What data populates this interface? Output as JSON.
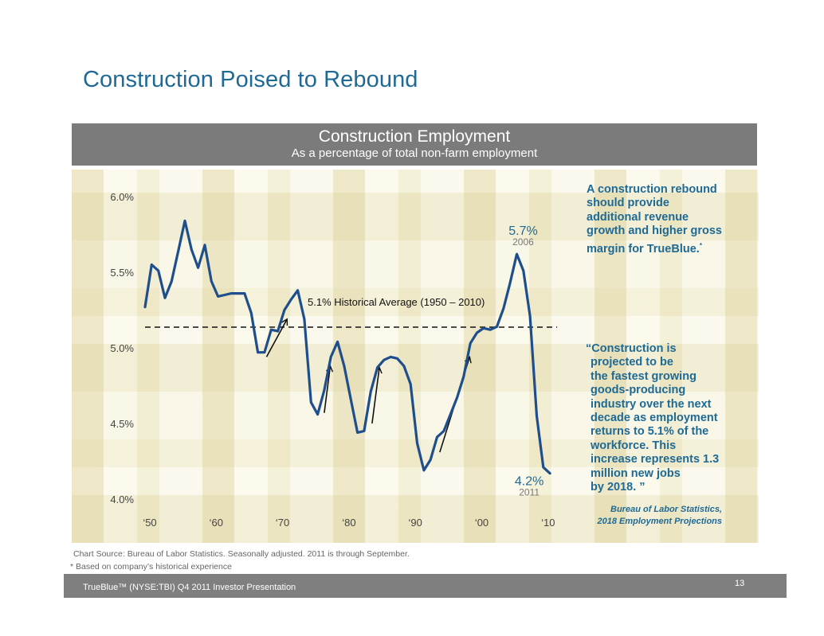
{
  "page": {
    "title": "Construction Poised to Rebound"
  },
  "header": {
    "title": "Construction Employment",
    "subtitle": "As a percentage of total non-farm employment"
  },
  "chart_data": {
    "type": "line",
    "title": "Construction Employment",
    "subtitle": "As a percentage of total non-farm employment",
    "xlabel": "",
    "ylabel": "",
    "ylim": [
      4.0,
      6.0
    ],
    "xlim": [
      1950,
      2011
    ],
    "grid": false,
    "y_ticks": [
      {
        "value": 6.0,
        "label": "6.0%"
      },
      {
        "value": 5.5,
        "label": "5.5%"
      },
      {
        "value": 5.0,
        "label": "5.0%"
      },
      {
        "value": 4.5,
        "label": "4.5%"
      },
      {
        "value": 4.0,
        "label": "4.0%"
      }
    ],
    "x_ticks": [
      {
        "value": 1950,
        "label": "‘50"
      },
      {
        "value": 1960,
        "label": "‘60"
      },
      {
        "value": 1970,
        "label": "‘70"
      },
      {
        "value": 1980,
        "label": "‘80"
      },
      {
        "value": 1990,
        "label": "‘90"
      },
      {
        "value": 2000,
        "label": "‘00"
      },
      {
        "value": 2010,
        "label": "‘10"
      }
    ],
    "series": [
      {
        "name": "Construction employment (% of non-farm)",
        "color": "#1f4e8c",
        "x": [
          1950,
          1951,
          1952,
          1953,
          1954,
          1955,
          1956,
          1957,
          1958,
          1959,
          1960,
          1961,
          1962,
          1963,
          1964,
          1965,
          1966,
          1967,
          1968,
          1969,
          1970,
          1971,
          1972,
          1973,
          1974,
          1975,
          1976,
          1977,
          1978,
          1979,
          1980,
          1981,
          1982,
          1983,
          1984,
          1985,
          1986,
          1987,
          1988,
          1989,
          1990,
          1991,
          1992,
          1993,
          1994,
          1995,
          1996,
          1997,
          1998,
          1999,
          2000,
          2001,
          2002,
          2003,
          2004,
          2005,
          2006,
          2007,
          2008,
          2009,
          2010,
          2011
        ],
        "values": [
          5.27,
          5.55,
          5.51,
          5.33,
          5.44,
          5.64,
          5.84,
          5.65,
          5.53,
          5.68,
          5.44,
          5.34,
          5.35,
          5.36,
          5.36,
          5.36,
          5.23,
          4.97,
          4.97,
          5.12,
          5.11,
          5.25,
          5.32,
          5.38,
          5.19,
          4.64,
          4.56,
          4.72,
          4.94,
          5.04,
          4.88,
          4.66,
          4.44,
          4.45,
          4.71,
          4.87,
          4.92,
          4.94,
          4.93,
          4.88,
          4.76,
          4.37,
          4.19,
          4.26,
          4.41,
          4.45,
          4.56,
          4.67,
          4.81,
          5.03,
          5.1,
          5.13,
          5.12,
          5.14,
          5.26,
          5.43,
          5.62,
          5.51,
          5.21,
          4.55,
          4.21,
          4.17
        ]
      }
    ],
    "reference_lines": [
      {
        "value": 5.1,
        "from": 1950,
        "to": 2011,
        "style": "dashed",
        "label": "5.1% Historical Average (1950 – 2010)"
      }
    ],
    "annotations": [
      {
        "x": 2006,
        "value_label": "5.7%",
        "year_label": "2006",
        "position": "above-peak"
      },
      {
        "x": 2011,
        "value_label": "4.2%",
        "year_label": "2011",
        "position": "below-end"
      }
    ],
    "arrows": [
      {
        "from": [
          1968.3,
          4.94
        ],
        "to": [
          1971.4,
          5.19
        ]
      },
      {
        "from": [
          1977.0,
          4.57
        ],
        "to": [
          1977.9,
          4.88
        ]
      },
      {
        "from": [
          1984.2,
          4.5
        ],
        "to": [
          1985.3,
          4.87
        ]
      },
      {
        "from": [
          1994.4,
          4.31
        ],
        "to": [
          1998.9,
          4.94
        ]
      }
    ],
    "legend": "none"
  },
  "sidebar": {
    "callout": "A construction  rebound should provide additional revenue growth and higher gross margin for TrueBlue.",
    "callout_lines": [
      "A construction  rebound",
      "should provide",
      "additional revenue",
      "growth and higher gross",
      "margin for TrueBlue."
    ],
    "callout_marker": "*",
    "quote_lines": [
      "“Construction is",
      "projected to be",
      "the fastest growing",
      "goods-producing",
      "industry over the next",
      "decade as employment",
      "returns to 5.1% of the",
      "workforce. This",
      "increase represents 1.3",
      "million new jobs",
      "by 2018. ”"
    ],
    "attribution_lines": [
      "Bureau of Labor Statistics,",
      "2018 Employment Projections"
    ]
  },
  "notes": {
    "source": "Chart Source: Bureau of Labor Statistics. Seasonally adjusted.  2011 is through September.",
    "footnote": "* Based on company’s historical experience"
  },
  "footer": {
    "text": "TrueBlue™ (NYSE:TBI) Q4 2011 Investor Presentation",
    "page_number": "13"
  }
}
